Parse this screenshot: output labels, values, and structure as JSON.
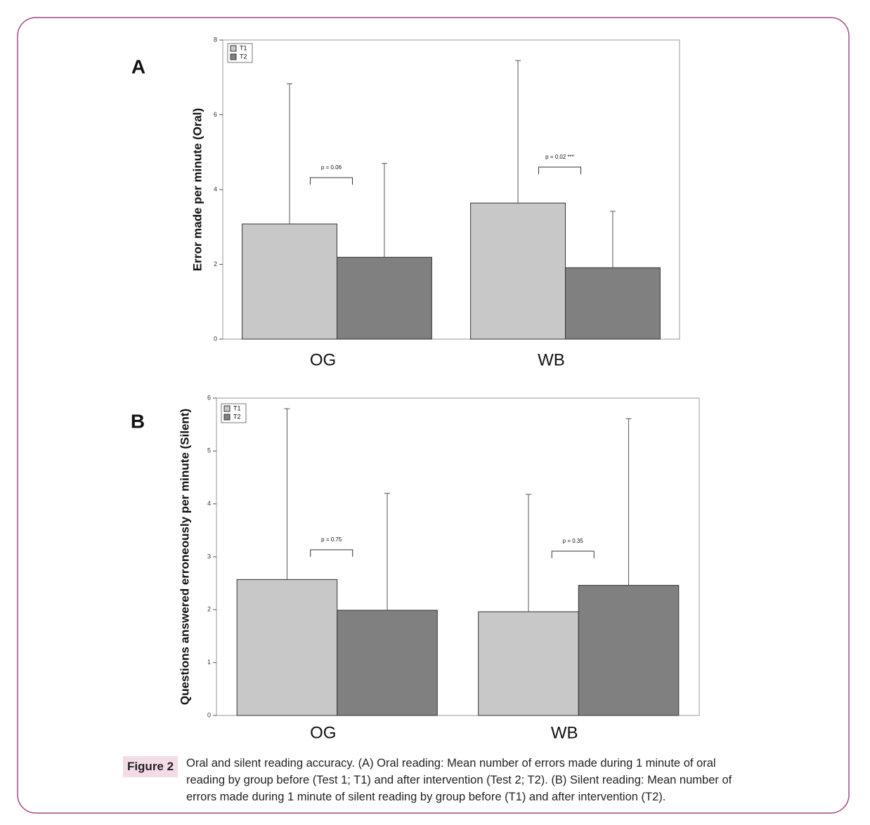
{
  "chart_data": [
    {
      "type": "bar",
      "panel_label": "A",
      "y_label": "Error  made per minute (Oral)",
      "categories": [
        "OG",
        "WB"
      ],
      "series": [
        {
          "name": "T1",
          "color": "#c8c8c8",
          "values": [
            3.08,
            3.64
          ],
          "errors": [
            3.75,
            3.81
          ]
        },
        {
          "name": "T2",
          "color": "#808080",
          "values": [
            2.19,
            1.91
          ],
          "errors": [
            2.51,
            1.51
          ]
        }
      ],
      "annotations": [
        "p = 0.06",
        "p = 0.02 ***"
      ],
      "ylim": [
        0,
        8
      ],
      "yticks": [
        0,
        2,
        4,
        6,
        8
      ],
      "legend": "upper left"
    },
    {
      "type": "bar",
      "panel_label": "B",
      "y_label": "Questions  answered erroneously  per minute (Silent)",
      "categories": [
        "OG",
        "WB"
      ],
      "series": [
        {
          "name": "T1",
          "color": "#c8c8c8",
          "values": [
            2.57,
            1.96
          ],
          "errors": [
            3.23,
            2.22
          ]
        },
        {
          "name": "T2",
          "color": "#808080",
          "values": [
            1.99,
            2.46
          ],
          "errors": [
            2.21,
            3.15
          ]
        }
      ],
      "annotations": [
        "p = 0.75",
        "p = 0.35"
      ],
      "ylim": [
        0,
        6
      ],
      "yticks": [
        0,
        1,
        2,
        3,
        4,
        5,
        6
      ],
      "legend": "upper left"
    }
  ],
  "caption": {
    "label": "Figure 2",
    "text": "Oral and silent reading accuracy. (A) Oral reading: Mean number of errors made during 1 minute of oral reading by group before (Test 1; T1) and after intervention (Test 2; T2). (B) Silent reading: Mean number of errors made during 1 minute of silent reading by group before (T1) and after intervention (T2)."
  }
}
